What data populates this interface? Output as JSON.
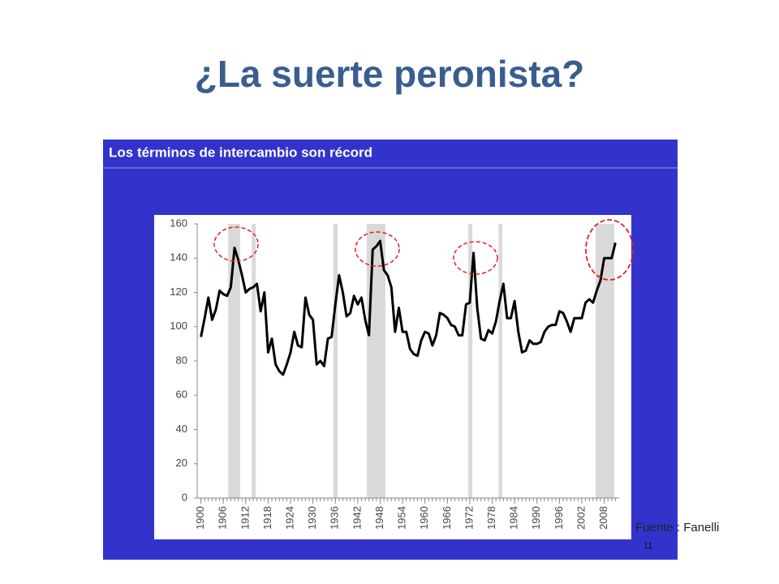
{
  "title": "¿La suerte peronista?",
  "source": "Fuente : Fanelli",
  "page_number": "11",
  "chart_data": {
    "type": "line",
    "title": "Los términos de intercambio son récord",
    "x": [
      1900,
      1901,
      1902,
      1903,
      1904,
      1905,
      1906,
      1907,
      1908,
      1909,
      1910,
      1911,
      1912,
      1913,
      1914,
      1915,
      1916,
      1917,
      1918,
      1919,
      1920,
      1921,
      1922,
      1923,
      1924,
      1925,
      1926,
      1927,
      1928,
      1929,
      1930,
      1931,
      1932,
      1933,
      1934,
      1935,
      1936,
      1937,
      1938,
      1939,
      1940,
      1941,
      1942,
      1943,
      1944,
      1945,
      1946,
      1947,
      1948,
      1949,
      1950,
      1951,
      1952,
      1953,
      1954,
      1955,
      1956,
      1957,
      1958,
      1959,
      1960,
      1961,
      1962,
      1963,
      1964,
      1965,
      1966,
      1967,
      1968,
      1969,
      1970,
      1971,
      1972,
      1973,
      1974,
      1975,
      1976,
      1977,
      1978,
      1979,
      1980,
      1981,
      1982,
      1983,
      1984,
      1985,
      1986,
      1987,
      1988,
      1989,
      1990,
      1991,
      1992,
      1993,
      1994,
      1995,
      1996,
      1997,
      1998,
      1999,
      2000,
      2001,
      2002,
      2003,
      2004,
      2005,
      2006,
      2007,
      2008,
      2009,
      2010,
      2011
    ],
    "values": [
      94,
      105,
      117,
      104,
      110,
      121,
      119,
      118,
      123,
      146,
      139,
      130,
      120,
      122,
      123,
      125,
      109,
      120,
      85,
      93,
      78,
      74,
      72,
      78,
      85,
      97,
      89,
      88,
      117,
      107,
      104,
      78,
      80,
      77,
      93,
      94,
      113,
      130,
      120,
      106,
      108,
      118,
      113,
      117,
      104,
      95,
      145,
      147,
      150,
      133,
      130,
      123,
      97,
      111,
      97,
      97,
      87,
      84,
      83,
      92,
      97,
      96,
      89,
      95,
      108,
      107,
      105,
      101,
      100,
      95,
      95,
      113,
      114,
      143,
      111,
      93,
      92,
      98,
      96,
      103,
      115,
      125,
      105,
      105,
      115,
      97,
      85,
      86,
      92,
      90,
      90,
      91,
      97,
      100,
      101,
      101,
      109,
      108,
      103,
      97,
      105,
      105,
      105,
      114,
      116,
      114,
      121,
      127,
      140,
      140,
      140,
      149
    ],
    "color": "#000000",
    "shaded_periods": [
      [
        1907.3,
        1910.5
      ],
      [
        1913.6,
        1914.7
      ],
      [
        1935.5,
        1936.6
      ],
      [
        1944.4,
        1949.4
      ],
      [
        1971.6,
        1972.7
      ],
      [
        1979.7,
        1980.7
      ],
      [
        2005.7,
        2010.7
      ]
    ],
    "shade_color": "#d9d9d9",
    "xlim": [
      1899,
      2012
    ],
    "xticks": [
      1900,
      1906,
      1912,
      1918,
      1924,
      1930,
      1936,
      1942,
      1948,
      1954,
      1960,
      1966,
      1972,
      1978,
      1984,
      1990,
      1996,
      2002,
      2008
    ],
    "ylim": [
      0,
      160
    ],
    "yticks": [
      0,
      20,
      40,
      60,
      80,
      100,
      120,
      140,
      160
    ],
    "grid": false
  }
}
